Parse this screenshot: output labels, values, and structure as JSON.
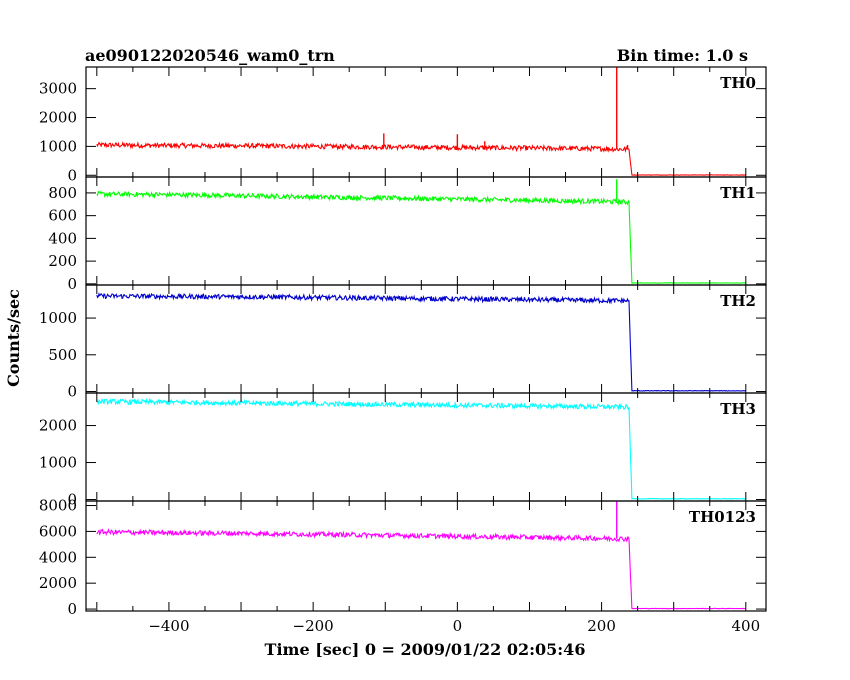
{
  "chart_data": {
    "type": "line",
    "title": "ae090122020546_wam0_trn",
    "subtitle": "Bin time: 1.0 s",
    "xlabel": "Time [sec] 0 = 2009/01/22 02:05:46",
    "ylabel": "Counts/sec",
    "xlim": [
      -515,
      428
    ],
    "x_ticks": [
      -400,
      -200,
      0,
      200,
      400
    ],
    "grid": false,
    "legend": "none",
    "panels": [
      {
        "name": "TH0",
        "color": "#ff0000",
        "ylim": [
          -60,
          3750
        ],
        "y_ticks": [
          0,
          1000,
          2000,
          3000
        ],
        "series": [
          {
            "x": -500,
            "y": 1050
          },
          {
            "x": -400,
            "y": 1030
          },
          {
            "x": -300,
            "y": 1020
          },
          {
            "x": -200,
            "y": 1000
          },
          {
            "x": -100,
            "y": 980
          },
          {
            "x": 0,
            "y": 960
          },
          {
            "x": 100,
            "y": 940
          },
          {
            "x": 200,
            "y": 920
          },
          {
            "x": 230,
            "y": 900
          },
          {
            "x": 238,
            "y": 900
          },
          {
            "x": 242,
            "y": 10
          },
          {
            "x": 400,
            "y": 10
          }
        ],
        "spikes": [
          {
            "x": -102,
            "y": 1450
          },
          {
            "x": 0,
            "y": 1420
          },
          {
            "x": 38,
            "y": 1180
          },
          {
            "x": 221,
            "y": 3750
          },
          {
            "x": 236,
            "y": 1050
          }
        ]
      },
      {
        "name": "TH1",
        "color": "#00ff00",
        "ylim": [
          -10,
          940
        ],
        "y_ticks": [
          0,
          200,
          400,
          600,
          800
        ],
        "series": [
          {
            "x": -500,
            "y": 790
          },
          {
            "x": -400,
            "y": 785
          },
          {
            "x": -300,
            "y": 775
          },
          {
            "x": -200,
            "y": 765
          },
          {
            "x": -100,
            "y": 755
          },
          {
            "x": 0,
            "y": 745
          },
          {
            "x": 100,
            "y": 735
          },
          {
            "x": 200,
            "y": 725
          },
          {
            "x": 238,
            "y": 720
          },
          {
            "x": 242,
            "y": 8
          },
          {
            "x": 400,
            "y": 8
          }
        ],
        "spikes": [
          {
            "x": 221,
            "y": 920
          }
        ]
      },
      {
        "name": "TH2",
        "color": "#0000cc",
        "ylim": [
          -20,
          1450
        ],
        "y_ticks": [
          0,
          500,
          1000
        ],
        "series": [
          {
            "x": -500,
            "y": 1300
          },
          {
            "x": -400,
            "y": 1295
          },
          {
            "x": -300,
            "y": 1290
          },
          {
            "x": -200,
            "y": 1280
          },
          {
            "x": -100,
            "y": 1270
          },
          {
            "x": 0,
            "y": 1260
          },
          {
            "x": 100,
            "y": 1250
          },
          {
            "x": 200,
            "y": 1240
          },
          {
            "x": 238,
            "y": 1235
          },
          {
            "x": 242,
            "y": 10
          },
          {
            "x": 400,
            "y": 10
          }
        ],
        "spikes": []
      },
      {
        "name": "TH3",
        "color": "#00ffff",
        "ylim": [
          -40,
          2880
        ],
        "y_ticks": [
          0,
          1000,
          2000
        ],
        "series": [
          {
            "x": -500,
            "y": 2650
          },
          {
            "x": -400,
            "y": 2630
          },
          {
            "x": -300,
            "y": 2610
          },
          {
            "x": -200,
            "y": 2590
          },
          {
            "x": -100,
            "y": 2570
          },
          {
            "x": 0,
            "y": 2550
          },
          {
            "x": 100,
            "y": 2530
          },
          {
            "x": 200,
            "y": 2510
          },
          {
            "x": 238,
            "y": 2500
          },
          {
            "x": 242,
            "y": 20
          },
          {
            "x": 400,
            "y": 20
          }
        ],
        "spikes": []
      },
      {
        "name": "TH0123",
        "color": "#ff00ff",
        "ylim": [
          -150,
          8350
        ],
        "y_ticks": [
          0,
          2000,
          4000,
          6000,
          8000
        ],
        "series": [
          {
            "x": -500,
            "y": 5950
          },
          {
            "x": -400,
            "y": 5900
          },
          {
            "x": -300,
            "y": 5850
          },
          {
            "x": -200,
            "y": 5780
          },
          {
            "x": -100,
            "y": 5700
          },
          {
            "x": 0,
            "y": 5620
          },
          {
            "x": 100,
            "y": 5540
          },
          {
            "x": 200,
            "y": 5460
          },
          {
            "x": 238,
            "y": 5420
          },
          {
            "x": 242,
            "y": 40
          },
          {
            "x": 400,
            "y": 40
          }
        ],
        "spikes": [
          {
            "x": 221,
            "y": 8350
          },
          {
            "x": 236,
            "y": 5600
          }
        ]
      }
    ]
  }
}
